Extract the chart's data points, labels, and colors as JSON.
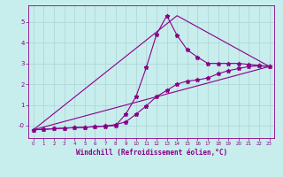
{
  "xlabel": "Windchill (Refroidissement éolien,°C)",
  "xlim": [
    -0.5,
    23.5
  ],
  "ylim": [
    -0.6,
    5.8
  ],
  "xticks": [
    0,
    1,
    2,
    3,
    4,
    5,
    6,
    7,
    8,
    9,
    10,
    11,
    12,
    13,
    14,
    15,
    16,
    17,
    18,
    19,
    20,
    21,
    22,
    23
  ],
  "yticks": [
    0,
    1,
    2,
    3,
    4,
    5
  ],
  "ytick_labels": [
    "-0",
    "1",
    "2",
    "3",
    "4",
    "5"
  ],
  "bg_color": "#c8eded",
  "grid_color": "#b0d8d8",
  "line_color": "#880088",
  "series_main": {
    "x": [
      0,
      1,
      2,
      3,
      4,
      5,
      6,
      7,
      8,
      9,
      10,
      11,
      12,
      13,
      14,
      15,
      16,
      17,
      18,
      19,
      20,
      21,
      22,
      23
    ],
    "y": [
      -0.2,
      -0.18,
      -0.15,
      -0.12,
      -0.1,
      -0.08,
      -0.05,
      -0.03,
      0.0,
      0.55,
      1.4,
      2.8,
      4.4,
      5.3,
      4.35,
      3.65,
      3.3,
      3.0,
      3.0,
      3.0,
      3.0,
      2.95,
      2.9,
      2.85
    ]
  },
  "series_lower": {
    "x": [
      0,
      1,
      2,
      3,
      4,
      5,
      6,
      7,
      8,
      9,
      10,
      11,
      12,
      13,
      14,
      15,
      16,
      17,
      18,
      19,
      20,
      21,
      22,
      23
    ],
    "y": [
      -0.2,
      -0.18,
      -0.15,
      -0.12,
      -0.1,
      -0.08,
      -0.05,
      -0.02,
      0.05,
      0.18,
      0.55,
      0.95,
      1.4,
      1.7,
      2.0,
      2.15,
      2.2,
      2.3,
      2.5,
      2.65,
      2.75,
      2.85,
      2.88,
      2.85
    ]
  },
  "line_straight": {
    "x": [
      0,
      23
    ],
    "y": [
      -0.2,
      2.85
    ]
  },
  "line_peak": {
    "x": [
      0,
      14,
      23
    ],
    "y": [
      -0.2,
      5.3,
      2.85
    ]
  },
  "marker": "*",
  "markersize": 3.5,
  "linewidth": 0.8,
  "tick_fontsize": 4.5,
  "xlabel_fontsize": 5.5
}
